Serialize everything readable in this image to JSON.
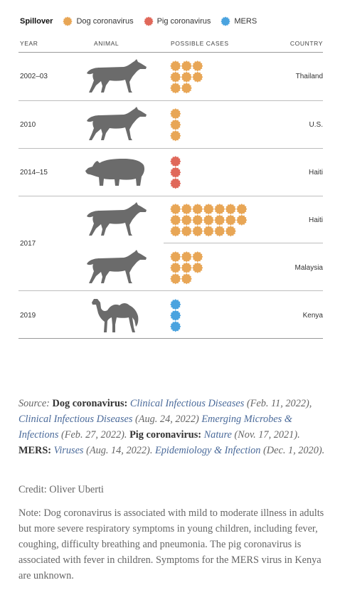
{
  "legend": {
    "title": "Spillover",
    "items": [
      {
        "label": "Dog coronavirus",
        "color": "#E8A656"
      },
      {
        "label": "Pig coronavirus",
        "color": "#E0685A"
      },
      {
        "label": "MERS",
        "color": "#4AA3DF"
      }
    ]
  },
  "headers": {
    "year": "YEAR",
    "animal": "ANIMAL",
    "cases": "POSSIBLE CASES",
    "country": "COUNTRY"
  },
  "chart_data": {
    "type": "table",
    "columns": [
      "YEAR",
      "ANIMAL",
      "POSSIBLE CASES",
      "COUNTRY"
    ],
    "rows": [
      {
        "year": "2002–03",
        "animal": "dog",
        "virus": "Dog coronavirus",
        "cases": 8,
        "country": "Thailand"
      },
      {
        "year": "2010",
        "animal": "dog",
        "virus": "Dog coronavirus",
        "cases": 3,
        "country": "U.S."
      },
      {
        "year": "2014–15",
        "animal": "pig",
        "virus": "Pig coronavirus",
        "cases": 3,
        "country": "Haiti"
      },
      {
        "year": "2017",
        "animal": "dog",
        "virus": "Dog coronavirus",
        "cases": 20,
        "country": "Haiti"
      },
      {
        "year": "2017",
        "animal": "dog",
        "virus": "Dog coronavirus",
        "cases": 8,
        "country": "Malaysia"
      },
      {
        "year": "2019",
        "animal": "camel",
        "virus": "MERS",
        "cases": 3,
        "country": "Kenya"
      }
    ],
    "colors": {
      "Dog coronavirus": "#E8A656",
      "Pig coronavirus": "#E0685A",
      "MERS": "#4AA3DF"
    },
    "animal_color": "#6B6B6B"
  },
  "source": {
    "label": "Source: ",
    "dog_label": "Dog coronavirus:",
    "cid1": "Clinical Infectious Diseases",
    "cid1_date": " (Feb. 11, 2022), ",
    "cid2": "Clinical Infectious Diseases",
    "cid2_date": " (Aug. 24, 2022) ",
    "emi": "Emerging Microbes & Infections",
    "emi_date": " (Feb. 27, 2022). ",
    "pig_label": "Pig coronavirus:",
    "nature": "Nature",
    "nature_date": " (Nov. 17, 2021). ",
    "mers_label": "MERS:",
    "viruses": "Viruses",
    "viruses_date": " (Aug. 14, 2022). ",
    "epi": "Epidemiology & Infection",
    "epi_date": " (Dec. 1, 2020)."
  },
  "credit": "Credit: Oliver Uberti",
  "note": "Note: Dog coronavirus is associated with mild to moderate illness in adults but more severe respiratory symptoms in young children, including fever, coughing, difficulty breathing and pneumonia. The pig coronavirus is associated with fever in children. Symptoms for the MERS virus in Kenya are unknown."
}
